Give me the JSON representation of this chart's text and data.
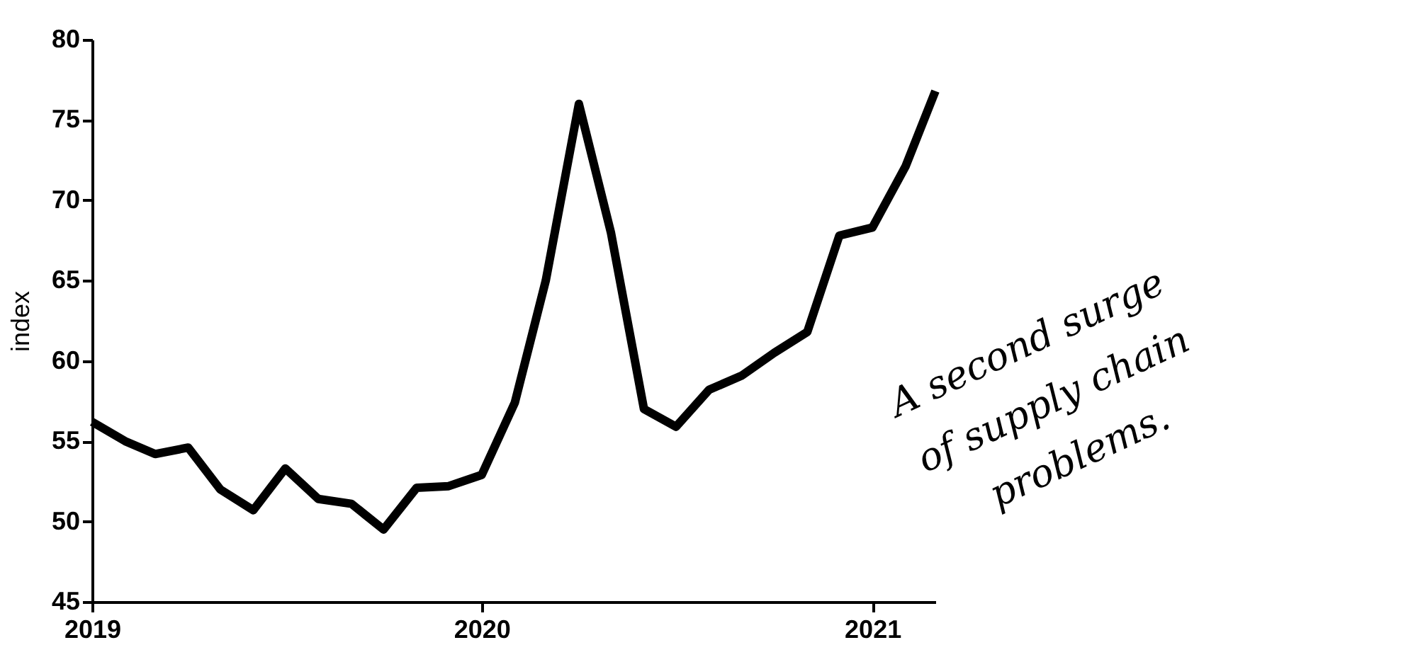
{
  "chart_data": {
    "type": "line",
    "ylabel": "index",
    "x": [
      "2019-01",
      "2019-02",
      "2019-03",
      "2019-04",
      "2019-05",
      "2019-06",
      "2019-07",
      "2019-08",
      "2019-09",
      "2019-10",
      "2019-11",
      "2019-12",
      "2020-01",
      "2020-02",
      "2020-03",
      "2020-04",
      "2020-05",
      "2020-06",
      "2020-07",
      "2020-08",
      "2020-09",
      "2020-10",
      "2020-11",
      "2020-12",
      "2021-01",
      "2021-02",
      "2021-03"
    ],
    "series": [
      {
        "color": "#000000",
        "values": [
          56.2,
          55.0,
          54.2,
          54.6,
          52.0,
          50.7,
          53.3,
          51.4,
          51.1,
          49.5,
          52.1,
          52.2,
          52.9,
          57.4,
          65.0,
          76.0,
          68.0,
          57.0,
          55.9,
          58.2,
          59.1,
          60.5,
          61.8,
          67.8,
          68.3,
          72.1,
          76.8
        ]
      }
    ],
    "xlim": [
      "2019-01",
      "2021-03"
    ],
    "xticks": [
      {
        "value": "2019-01",
        "label": "2019"
      },
      {
        "value": "2020-01",
        "label": "2020"
      },
      {
        "value": "2021-01",
        "label": "2021"
      }
    ],
    "ylim": [
      45,
      80
    ],
    "yticks": [
      45,
      50,
      55,
      60,
      65,
      70,
      75,
      80
    ],
    "grid": false,
    "marker": "none",
    "line_style": "solid",
    "annotations": [
      "A second surge of supply chain problems."
    ]
  }
}
